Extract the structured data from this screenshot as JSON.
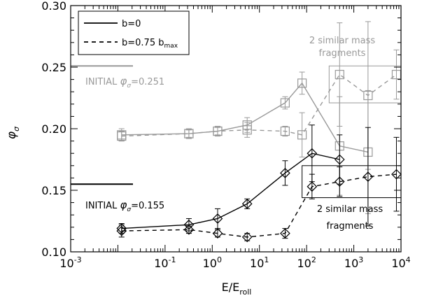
{
  "chart_data": {
    "type": "line",
    "xlabel": "E/E",
    "xlabel_sub": "roll",
    "ylabel": "φ",
    "ylabel_sub": "σ",
    "x_scale": "log",
    "xlim": [
      0.001,
      10000
    ],
    "ylim": [
      0.1,
      0.3
    ],
    "x_ticks": [
      {
        "value": 0.001,
        "base": "10",
        "exp": "-3"
      },
      {
        "value": 0.1,
        "base": "10",
        "exp": "-1"
      },
      {
        "value": 1,
        "base": "10",
        "exp": "0"
      },
      {
        "value": 10,
        "base": "10",
        "exp": "1"
      },
      {
        "value": 100,
        "base": "10",
        "exp": "2"
      },
      {
        "value": 1000,
        "base": "10",
        "exp": "3"
      },
      {
        "value": 10000,
        "base": "10",
        "exp": "4"
      }
    ],
    "y_ticks": [
      {
        "value": 0.1,
        "label": "0.10"
      },
      {
        "value": 0.15,
        "label": "0.15"
      },
      {
        "value": 0.2,
        "label": "0.20"
      },
      {
        "value": 0.25,
        "label": "0.25"
      },
      {
        "value": 0.3,
        "label": "0.30"
      }
    ],
    "legend": {
      "position": "top-left",
      "entries": [
        {
          "label": "b=0",
          "style": "solid"
        },
        {
          "label": "b=0.75 b",
          "sub": "max",
          "style": "dashed"
        }
      ]
    },
    "series": [
      {
        "group": "gray",
        "color": "#999999",
        "marker": "square",
        "style": "solid",
        "x": [
          0.012,
          0.32,
          1.3,
          5.5,
          35,
          80,
          500,
          2000
        ],
        "y": [
          0.195,
          0.196,
          0.198,
          0.203,
          0.221,
          0.237,
          0.186,
          0.181
        ],
        "err": [
          0.005,
          0.004,
          0.004,
          0.006,
          0.005,
          0.009,
          0.04,
          0.05
        ]
      },
      {
        "group": "gray",
        "color": "#999999",
        "marker": "square",
        "style": "dashed",
        "x": [
          0.012,
          0.32,
          1.3,
          5.5,
          35,
          80,
          500,
          2000,
          8000
        ],
        "y": [
          0.194,
          0.196,
          0.198,
          0.199,
          0.198,
          0.195,
          0.244,
          0.227,
          0.244
        ],
        "err": [
          0.004,
          0.003,
          0.003,
          0.006,
          0.004,
          0.018,
          0.042,
          0.06,
          0.02
        ]
      },
      {
        "group": "black",
        "color": "#000000",
        "marker": "diamond",
        "style": "solid",
        "x": [
          0.012,
          0.32,
          1.3,
          5.5,
          35,
          130,
          500
        ],
        "y": [
          0.119,
          0.122,
          0.127,
          0.139,
          0.164,
          0.18,
          0.175
        ],
        "err": [
          0.004,
          0.005,
          0.008,
          0.004,
          0.01,
          0.023,
          0.02
        ]
      },
      {
        "group": "black",
        "color": "#000000",
        "marker": "diamond",
        "style": "dashed",
        "x": [
          0.012,
          0.32,
          1.3,
          5.5,
          35,
          130,
          500,
          2000,
          8000
        ],
        "y": [
          0.117,
          0.118,
          0.115,
          0.112,
          0.115,
          0.153,
          0.157,
          0.161,
          0.163
        ],
        "err": [
          0.005,
          0.003,
          0.003,
          0.003,
          0.004,
          0.01,
          0.012,
          0.04,
          0.03
        ]
      }
    ],
    "annotations": {
      "initial_gray": {
        "prefix": "INITIAL",
        "symbol": "φ",
        "sub": "σ",
        "value": "=0.251",
        "y": 0.251,
        "color": "#999999"
      },
      "initial_black": {
        "prefix": "INITIAL",
        "symbol": "φ",
        "sub": "σ",
        "value": "=0.155",
        "y": 0.155,
        "color": "#000000"
      },
      "gray_fragments": {
        "line1": "2 similar mass",
        "line2": "fragments",
        "color": "#999999",
        "box_x": [
          300,
          10000
        ],
        "box_y": [
          0.221,
          0.251
        ]
      },
      "black_fragments": {
        "line1": "2 similar mass",
        "line2": "fragments",
        "color": "#000000",
        "box_x": [
          80,
          10000
        ],
        "box_y": [
          0.144,
          0.17
        ]
      }
    }
  }
}
